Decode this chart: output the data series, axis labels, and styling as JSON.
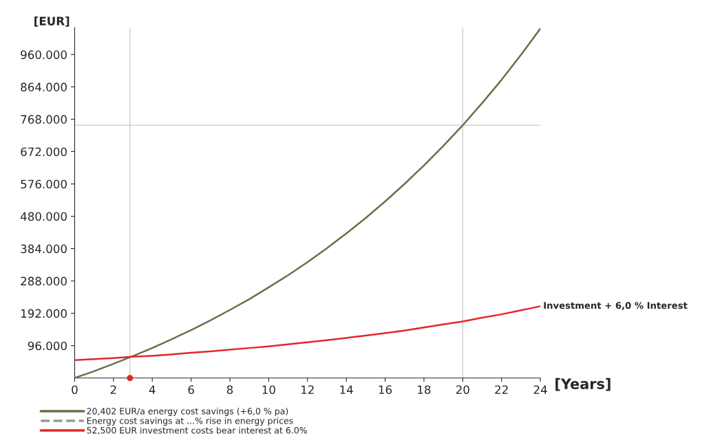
{
  "chart_data": {
    "type": "line",
    "ylabel": "[EUR]",
    "xlabel": "[Years]",
    "x": [
      0,
      1,
      2,
      3,
      4,
      5,
      6,
      7,
      8,
      9,
      10,
      11,
      12,
      13,
      14,
      15,
      16,
      17,
      18,
      19,
      20,
      21,
      22,
      23,
      24
    ],
    "series": [
      {
        "name": "20,402 EUR/a energy cost savings (+6,0 % pa)",
        "color": "#6b6e47",
        "line_style": "solid",
        "values": [
          0,
          20000,
          42000,
          65000,
          89000,
          115000,
          142000,
          171000,
          202000,
          234000,
          269000,
          305000,
          344000,
          385000,
          429000,
          475000,
          524000,
          576000,
          631000,
          689000,
          750000,
          816000,
          885000,
          959000,
          1037000
        ]
      },
      {
        "name": "Energy cost savings at ...% rise in energy prices",
        "color": "#999999",
        "line_style": "dashed",
        "values": [
          null,
          null,
          null,
          null,
          null,
          null,
          null,
          null,
          null,
          null,
          null,
          null,
          null,
          null,
          null,
          null,
          null,
          null,
          null,
          null,
          null,
          null,
          null,
          null,
          null
        ]
      },
      {
        "name": "52,500 EUR investment costs bear interest at 6.0%",
        "color": "#e3262b",
        "line_style": "solid",
        "values": [
          53000,
          56000,
          59000,
          63000,
          66000,
          70000,
          75000,
          79000,
          84000,
          89000,
          94000,
          100000,
          106000,
          112000,
          119000,
          126000,
          133000,
          141000,
          150000,
          159000,
          168000,
          179000,
          189000,
          201000,
          213000
        ]
      },
      {
        "type": "scatter",
        "x": [
          2.85
        ],
        "color": "#e3262b",
        "values": [
          0
        ]
      }
    ],
    "ref_lines": [
      {
        "axis": "x",
        "value": 20,
        "color": "#c8c8c8"
      },
      {
        "axis": "y",
        "value": 750000,
        "color": "#c8c8c8"
      },
      {
        "axis": "x",
        "value": 2.85,
        "color": "#c8c8c8"
      }
    ],
    "annotations": [
      {
        "text": "Investment + 6,0 % Interest",
        "x": 24,
        "y": 213000
      }
    ],
    "xlim": [
      0,
      24
    ],
    "xticks": [
      0,
      2,
      4,
      6,
      8,
      10,
      12,
      14,
      16,
      18,
      20,
      22,
      24
    ],
    "ylim": [
      0,
      1040000
    ],
    "yticks": [
      {
        "value": 96000,
        "label": "96.000"
      },
      {
        "value": 192000,
        "label": "192.000"
      },
      {
        "value": 288000,
        "label": "288.000"
      },
      {
        "value": 384000,
        "label": "384.000"
      },
      {
        "value": 480000,
        "label": "480.000"
      },
      {
        "value": 576000,
        "label": "576.000"
      },
      {
        "value": 672000,
        "label": "672.000"
      },
      {
        "value": 768000,
        "label": "768.000"
      },
      {
        "value": 864000,
        "label": "864.000"
      },
      {
        "value": 960000,
        "label": "960.000"
      }
    ],
    "grid": false,
    "legend": "bottom left",
    "marker": "none"
  }
}
